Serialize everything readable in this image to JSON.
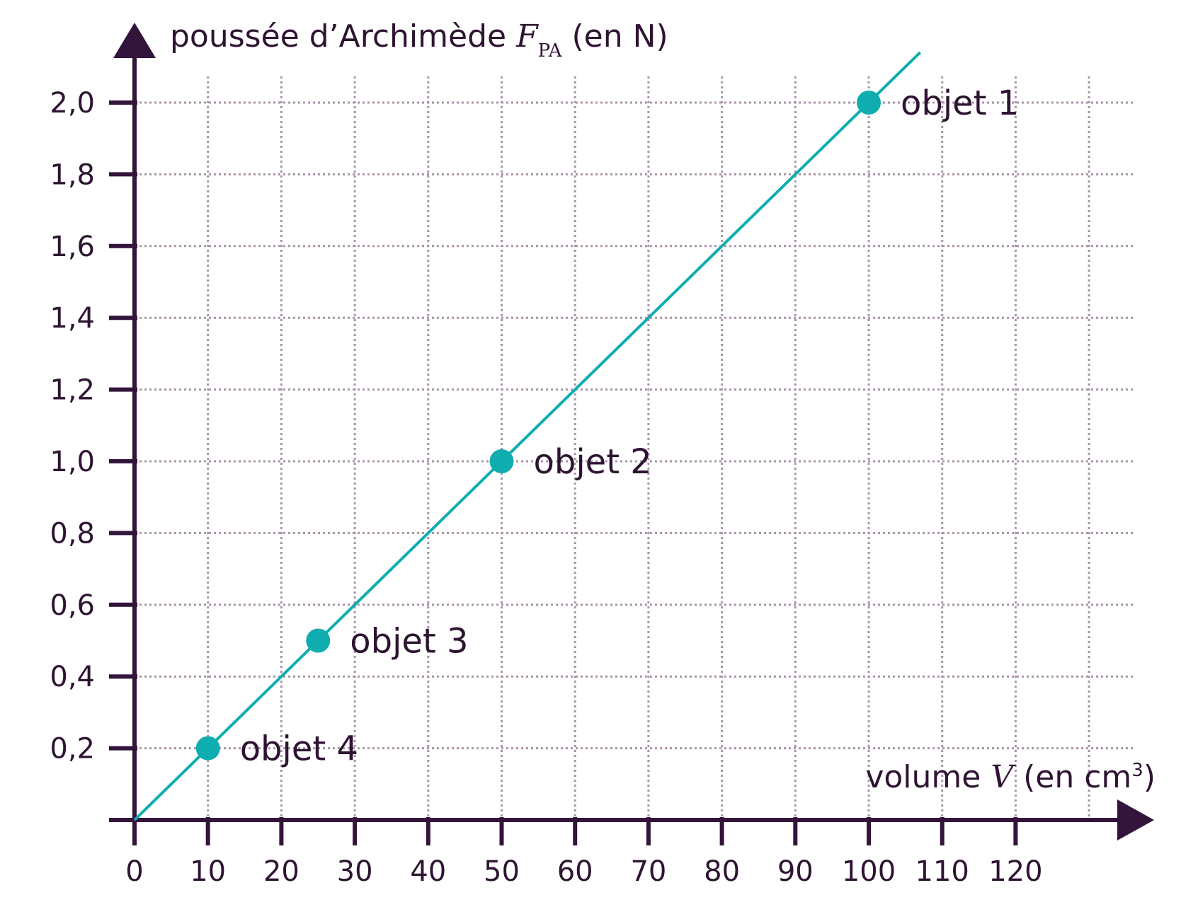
{
  "colors": {
    "axis": "#33143a",
    "grid": "#a894a8",
    "series": "#0fadaf",
    "text": "#2e1432"
  },
  "chart_data": {
    "type": "scatter",
    "grid": true,
    "xlim": [
      0,
      136
    ],
    "ylim": [
      0,
      2.15
    ],
    "x_ticks": [
      0,
      10,
      20,
      30,
      40,
      50,
      60,
      70,
      80,
      90,
      100,
      110,
      120
    ],
    "x_tick_labels": [
      "0",
      "10",
      "20",
      "30",
      "40",
      "50",
      "60",
      "70",
      "80",
      "90",
      "100",
      "110",
      "120"
    ],
    "y_ticks": [
      0.2,
      0.4,
      0.6,
      0.8,
      1.0,
      1.2,
      1.4,
      1.6,
      1.8,
      2.0
    ],
    "y_tick_labels": [
      "0,2",
      "0,4",
      "0,6",
      "0,8",
      "1,0",
      "1,2",
      "1,4",
      "1,6",
      "1,8",
      "2,0"
    ],
    "ylabel": {
      "prefix": "poussée d’Archimède ",
      "symbol": "F",
      "subscript": "PA",
      "suffix": " (en N)"
    },
    "xlabel": {
      "prefix": "volume ",
      "symbol": "V",
      "suffix": " (en cm",
      "superscript": "3",
      "close": ")"
    },
    "points": [
      {
        "x": 100,
        "y": 2.0,
        "label": "objet 1"
      },
      {
        "x": 50,
        "y": 1.0,
        "label": "objet 2"
      },
      {
        "x": 25,
        "y": 0.5,
        "label": "objet 3"
      },
      {
        "x": 10,
        "y": 0.2,
        "label": "objet 4"
      }
    ],
    "fit_line": {
      "x": [
        0,
        107
      ],
      "y": [
        0,
        2.14
      ]
    }
  }
}
